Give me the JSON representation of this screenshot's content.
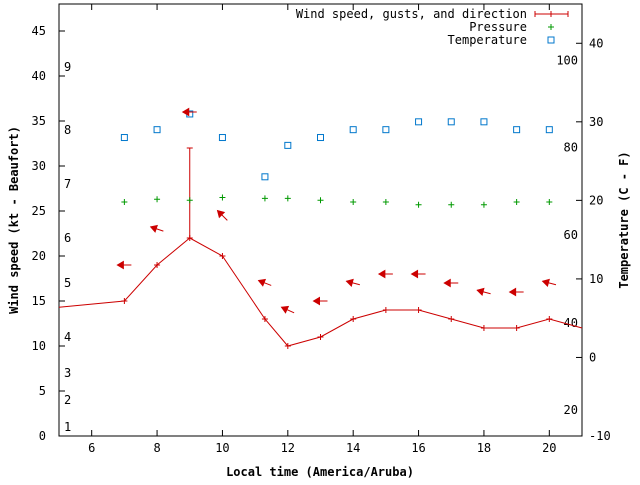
{
  "chart_data": {
    "type": "line",
    "xlabel": "Local time (America/Aruba)",
    "ylabel": "Wind speed (kt - Beaufort)",
    "y2label": "Temperature (C - F)",
    "xlim": [
      5,
      21
    ],
    "ylim": [
      0,
      48
    ],
    "y2lim": [
      -10,
      45
    ],
    "x_ticks": [
      6,
      8,
      10,
      12,
      14,
      16,
      18,
      20
    ],
    "y_ticks": [
      0,
      5,
      10,
      15,
      20,
      25,
      30,
      35,
      40,
      45
    ],
    "y2_ticks": [
      -10,
      0,
      10,
      20,
      30,
      40
    ],
    "beaufort_labels": [
      {
        "label": "1",
        "kt": 1
      },
      {
        "label": "2",
        "kt": 4
      },
      {
        "label": "3",
        "kt": 7
      },
      {
        "label": "4",
        "kt": 11
      },
      {
        "label": "5",
        "kt": 17
      },
      {
        "label": "6",
        "kt": 22
      },
      {
        "label": "7",
        "kt": 28
      },
      {
        "label": "8",
        "kt": 34
      },
      {
        "label": "9",
        "kt": 41
      }
    ],
    "fahrenheit_labels": [
      {
        "label": "20",
        "c": -6.7
      },
      {
        "label": "40",
        "c": 4.4
      },
      {
        "label": "60",
        "c": 15.6
      },
      {
        "label": "80",
        "c": 26.7
      },
      {
        "label": "100",
        "c": 37.8
      }
    ],
    "legend": {
      "placement": "top-right",
      "entries": [
        {
          "label": "Wind speed, gusts, and direction",
          "color": "#cc0000"
        },
        {
          "label": "Pressure",
          "color": "#009900"
        },
        {
          "label": "Temperature",
          "color": "#0077cc"
        }
      ]
    },
    "series": [
      {
        "name": "Wind speed, gusts, and direction",
        "color": "#cc0000",
        "x": [
          5,
          7,
          8,
          9,
          10,
          11.3,
          12,
          13,
          14,
          15,
          16,
          17,
          18,
          19,
          20,
          21
        ],
        "values": [
          14.3,
          15,
          19,
          22,
          20,
          13,
          10,
          11,
          13,
          14,
          14,
          13,
          12,
          12,
          13,
          12
        ]
      },
      {
        "name": "Pressure",
        "color": "#009900",
        "x": [
          7,
          8,
          9,
          10,
          11.3,
          12,
          13,
          14,
          15,
          16,
          17,
          18,
          19,
          20
        ],
        "values": [
          26,
          26.3,
          26.2,
          26.5,
          26.4,
          26.4,
          26.2,
          26,
          26,
          25.7,
          25.7,
          25.7,
          26,
          26
        ]
      },
      {
        "name": "Temperature",
        "color": "#0077cc",
        "x": [
          7,
          8,
          9,
          10,
          11.3,
          12,
          13,
          14,
          15,
          16,
          17,
          18,
          19,
          20
        ],
        "values": [
          28,
          29,
          31,
          28,
          23,
          27,
          28,
          29,
          29,
          30,
          30,
          30,
          29,
          29
        ]
      }
    ],
    "gusts": [
      {
        "x": 9,
        "y": 32
      }
    ],
    "wind_arrows": [
      {
        "x": 7,
        "y": 19,
        "dx": -1,
        "dy": 0
      },
      {
        "x": 8,
        "y": 23,
        "dx": -0.9,
        "dy": 0.3
      },
      {
        "x": 9,
        "y": 36,
        "dx": -1,
        "dy": 0
      },
      {
        "x": 10,
        "y": 24.5,
        "dx": -0.7,
        "dy": 0.7
      },
      {
        "x": 11.3,
        "y": 17,
        "dx": -0.9,
        "dy": 0.35
      },
      {
        "x": 12,
        "y": 14,
        "dx": -0.9,
        "dy": 0.4
      },
      {
        "x": 13,
        "y": 15,
        "dx": -1,
        "dy": 0
      },
      {
        "x": 14,
        "y": 17,
        "dx": -0.95,
        "dy": 0.25
      },
      {
        "x": 15,
        "y": 18,
        "dx": -1,
        "dy": 0
      },
      {
        "x": 16,
        "y": 18,
        "dx": -1,
        "dy": 0
      },
      {
        "x": 17,
        "y": 17,
        "dx": -1,
        "dy": 0
      },
      {
        "x": 18,
        "y": 16,
        "dx": -0.95,
        "dy": 0.25
      },
      {
        "x": 19,
        "y": 16,
        "dx": -1,
        "dy": 0
      },
      {
        "x": 20,
        "y": 17,
        "dx": -0.95,
        "dy": 0.25
      }
    ]
  }
}
